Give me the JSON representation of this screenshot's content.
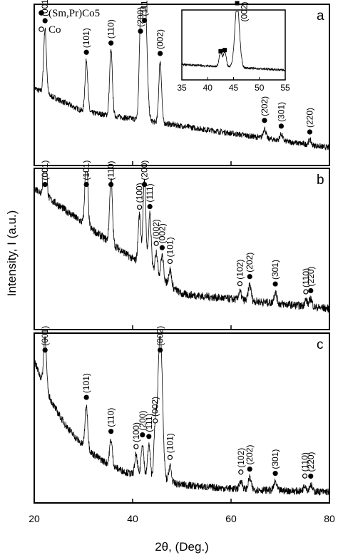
{
  "chart_data": {
    "type": "line",
    "xlabel": "2θ, (Deg.)",
    "ylabel": "Intensity, I (a.u.)",
    "xlim": [
      20,
      80
    ],
    "xticks": [
      20,
      40,
      60,
      80
    ],
    "legend": {
      "placement": "top-left",
      "entries": [
        {
          "symbol": "filled-circle",
          "label": "(Sm,Pr)Co5"
        },
        {
          "symbol": "open-circle",
          "label": "Co"
        }
      ]
    },
    "panels": [
      {
        "label": "a",
        "peaks": [
          {
            "x": 22.2,
            "label": "(001)",
            "phase": "SmPrCo5",
            "height": 0.4
          },
          {
            "x": 30.6,
            "label": "(101)",
            "phase": "SmPrCo5",
            "height": 0.32
          },
          {
            "x": 35.6,
            "label": "(110)",
            "phase": "SmPrCo5",
            "height": 0.4
          },
          {
            "x": 41.6,
            "label": "(200)",
            "phase": "SmPrCo5",
            "height": 0.5
          },
          {
            "x": 42.4,
            "label": "(111)",
            "phase": "SmPrCo5",
            "height": 0.88
          },
          {
            "x": 45.6,
            "label": "(002)",
            "phase": "SmPrCo5",
            "height": 0.38
          },
          {
            "x": 66.8,
            "label": "(202)",
            "phase": "SmPrCo5",
            "height": 0.06
          },
          {
            "x": 70.2,
            "label": "(301)",
            "phase": "SmPrCo5",
            "height": 0.04
          },
          {
            "x": 76.0,
            "label": "(220)",
            "phase": "SmPrCo5",
            "height": 0.03
          }
        ],
        "inset": {
          "xlim": [
            35,
            55
          ],
          "xticks": [
            35,
            40,
            45,
            50,
            55
          ],
          "peaks": [
            {
              "x": 42.5,
              "label": "",
              "phase": "SmPrCo5",
              "height": 0.2
            },
            {
              "x": 43.3,
              "label": "",
              "phase": "SmPrCo5",
              "height": 0.22
            },
            {
              "x": 45.7,
              "label": "(002)",
              "phase": "SmPrCo5",
              "height": 0.9
            }
          ]
        }
      },
      {
        "label": "b",
        "peaks": [
          {
            "x": 22.2,
            "label": "(001)",
            "phase": "SmPrCo5",
            "height": 0.4
          },
          {
            "x": 30.6,
            "label": "(101)",
            "phase": "SmPrCo5",
            "height": 0.45
          },
          {
            "x": 35.6,
            "label": "(110)",
            "phase": "SmPrCo5",
            "height": 0.4
          },
          {
            "x": 41.4,
            "label": "(100)",
            "phase": "Co",
            "height": 0.3
          },
          {
            "x": 42.4,
            "label": "(200)",
            "phase": "SmPrCo5",
            "height": 0.55
          },
          {
            "x": 43.5,
            "label": "(111)",
            "phase": "SmPrCo5",
            "height": 0.35
          },
          {
            "x": 44.8,
            "label": "(002)",
            "phase": "Co",
            "height": 0.15
          },
          {
            "x": 46.0,
            "label": "(002)",
            "phase": "SmPrCo5",
            "height": 0.15
          },
          {
            "x": 47.6,
            "label": "(101)",
            "phase": "Co",
            "height": 0.1
          },
          {
            "x": 61.8,
            "label": "(102)",
            "phase": "Co",
            "height": 0.05
          },
          {
            "x": 63.8,
            "label": "(202)",
            "phase": "SmPrCo5",
            "height": 0.1
          },
          {
            "x": 69.0,
            "label": "(301)",
            "phase": "SmPrCo5",
            "height": 0.07
          },
          {
            "x": 75.2,
            "label": "(110)",
            "phase": "Co",
            "height": 0.04
          },
          {
            "x": 76.2,
            "label": "(220)",
            "phase": "SmPrCo5",
            "height": 0.05
          }
        ]
      },
      {
        "label": "c",
        "peaks": [
          {
            "x": 22.2,
            "label": "(001)",
            "phase": "SmPrCo5",
            "height": 0.3
          },
          {
            "x": 30.6,
            "label": "(101)",
            "phase": "SmPrCo5",
            "height": 0.25
          },
          {
            "x": 35.6,
            "label": "(110)",
            "phase": "SmPrCo5",
            "height": 0.15
          },
          {
            "x": 40.7,
            "label": "(100)",
            "phase": "Co",
            "height": 0.12
          },
          {
            "x": 42.0,
            "label": "(200)",
            "phase": "SmPrCo5",
            "height": 0.2
          },
          {
            "x": 43.3,
            "label": "(111)",
            "phase": "SmPrCo5",
            "height": 0.2
          },
          {
            "x": 44.6,
            "label": "(002)",
            "phase": "Co",
            "height": 0.3
          },
          {
            "x": 45.6,
            "label": "(002)",
            "phase": "SmPrCo5",
            "height": 0.9
          },
          {
            "x": 47.6,
            "label": "(101)",
            "phase": "Co",
            "height": 0.1
          },
          {
            "x": 62.0,
            "label": "(102)",
            "phase": "Co",
            "height": 0.05
          },
          {
            "x": 63.8,
            "label": "(202)",
            "phase": "SmPrCo5",
            "height": 0.07
          },
          {
            "x": 69.0,
            "label": "(301)",
            "phase": "SmPrCo5",
            "height": 0.05
          },
          {
            "x": 75.0,
            "label": "(110)",
            "phase": "Co",
            "height": 0.04
          },
          {
            "x": 76.2,
            "label": "(220)",
            "phase": "SmPrCo5",
            "height": 0.04
          }
        ]
      }
    ]
  }
}
